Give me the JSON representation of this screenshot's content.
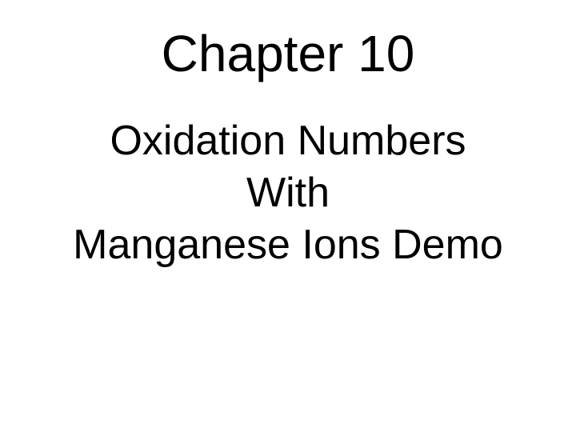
{
  "slide": {
    "title": "Chapter 10",
    "subtitle_line1": "Oxidation Numbers",
    "subtitle_line2": "With",
    "subtitle_line3": "Manganese Ions Demo",
    "background_color": "#ffffff",
    "text_color": "#000000",
    "title_fontsize": 64,
    "subtitle_fontsize": 52,
    "font_family": "Arial"
  }
}
